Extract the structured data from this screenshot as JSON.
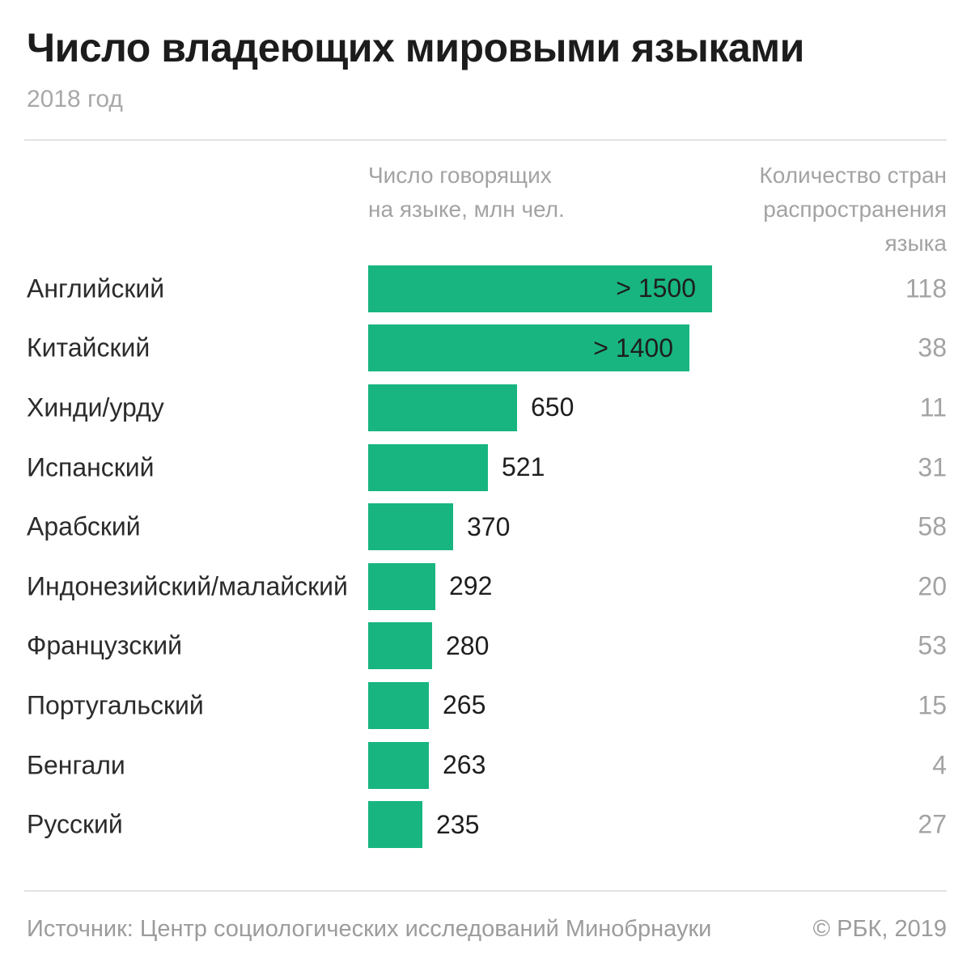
{
  "header": {
    "title": "Число владеющих мировыми языками",
    "subtitle": "2018 год"
  },
  "columns": {
    "speakers": "Число говорящих\nна языке, млн чел.",
    "countries": "Количество стран\nраспространения\nязыка"
  },
  "chart_data": {
    "type": "bar",
    "orientation": "horizontal",
    "title": "Число владеющих мировыми языками",
    "subtitle": "2018 год",
    "categories": [
      "Английский",
      "Китайский",
      "Хинди/урду",
      "Испанский",
      "Арабский",
      "Индонезийский/малайский",
      "Французский",
      "Португальский",
      "Бенгали",
      "Русский"
    ],
    "series": [
      {
        "name": "Число говорящих на языке, млн чел.",
        "values": [
          1500,
          1400,
          650,
          521,
          370,
          292,
          280,
          265,
          263,
          235
        ],
        "value_labels": [
          "> 1500",
          "> 1400",
          "650",
          "521",
          "370",
          "292",
          "280",
          "265",
          "263",
          "235"
        ],
        "label_inside": [
          true,
          true,
          false,
          false,
          false,
          false,
          false,
          false,
          false,
          false
        ]
      },
      {
        "name": "Количество стран распространения языка",
        "values": [
          118,
          38,
          11,
          31,
          58,
          20,
          53,
          15,
          4,
          27
        ]
      }
    ],
    "xlim": [
      0,
      1500
    ],
    "grid": false,
    "legend_position": "none",
    "bar_color": "#18b581"
  },
  "footer": {
    "source": "Источник: Центр социологических исследований Минобрнауки",
    "copyright": "© РБК, 2019"
  }
}
